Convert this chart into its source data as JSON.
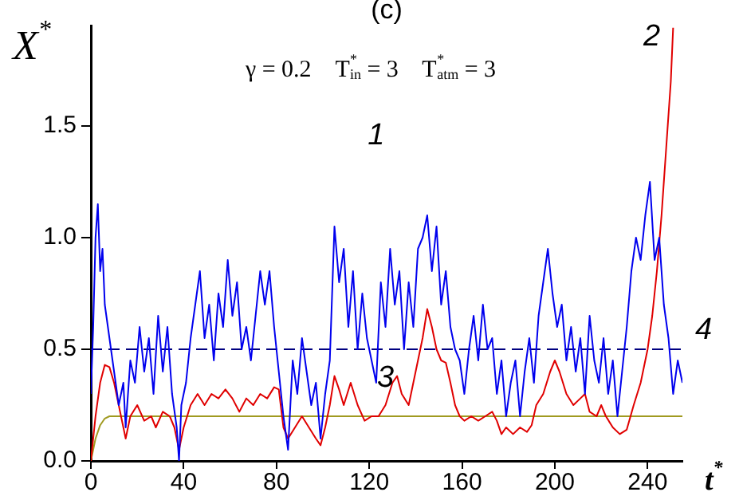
{
  "chart_data": {
    "type": "line",
    "title": "(c)",
    "xlabel": "t$^{*}$",
    "ylabel": "X$^{*}$",
    "xlim": [
      0,
      255
    ],
    "xticks": [
      0,
      40,
      80,
      120,
      160,
      200,
      240
    ],
    "ylim": [
      0,
      1.95
    ],
    "yticks": [
      {
        "value": 0,
        "label": "0.0"
      },
      {
        "value": 0.5,
        "label": "0.5"
      },
      {
        "value": 1,
        "label": "1.0"
      },
      {
        "value": 1.5,
        "label": "1.5"
      }
    ],
    "grid": false,
    "legend": false,
    "marker": "none",
    "line_style": "solid",
    "series": [
      {
        "color": "#0000ee",
        "x": [
          0,
          1,
          2,
          3,
          4,
          5,
          6,
          8,
          10,
          12,
          14,
          15,
          17,
          19,
          21,
          23,
          25,
          27,
          29,
          31,
          33,
          35,
          37,
          38,
          39,
          41,
          43,
          45,
          47,
          49,
          51,
          53,
          55,
          57,
          59,
          61,
          63,
          65,
          67,
          69,
          71,
          73,
          75,
          77,
          79,
          81,
          83,
          85,
          87,
          89,
          91,
          93,
          95,
          97,
          99,
          101,
          103,
          105,
          107,
          109,
          111,
          113,
          115,
          117,
          119,
          121,
          123,
          125,
          127,
          129,
          131,
          133,
          135,
          137,
          139,
          141,
          143,
          145,
          147,
          149,
          151,
          153,
          155,
          157,
          159,
          161,
          163,
          165,
          167,
          169,
          171,
          173,
          175,
          177,
          179,
          181,
          183,
          185,
          187,
          189,
          191,
          193,
          195,
          197,
          199,
          201,
          203,
          205,
          207,
          209,
          211,
          213,
          215,
          217,
          219,
          221,
          223,
          225,
          227,
          229,
          231,
          233,
          235,
          237,
          239,
          241,
          243,
          245,
          247,
          249,
          251,
          253,
          255
        ],
        "values": [
          0.3,
          0.6,
          1.0,
          1.15,
          0.85,
          0.95,
          0.7,
          0.55,
          0.4,
          0.25,
          0.35,
          0.15,
          0.45,
          0.35,
          0.6,
          0.4,
          0.55,
          0.3,
          0.65,
          0.4,
          0.6,
          0.3,
          0.15,
          0.0,
          0.25,
          0.35,
          0.55,
          0.7,
          0.85,
          0.55,
          0.7,
          0.45,
          0.75,
          0.6,
          0.9,
          0.65,
          0.8,
          0.5,
          0.6,
          0.45,
          0.65,
          0.85,
          0.7,
          0.85,
          0.6,
          0.4,
          0.2,
          0.05,
          0.45,
          0.3,
          0.55,
          0.4,
          0.25,
          0.35,
          0.1,
          0.3,
          0.45,
          1.05,
          0.8,
          0.95,
          0.6,
          0.85,
          0.5,
          0.75,
          0.55,
          0.45,
          0.35,
          0.8,
          0.6,
          0.95,
          0.7,
          0.85,
          0.5,
          0.8,
          0.6,
          0.95,
          1.0,
          1.1,
          0.85,
          1.05,
          0.7,
          0.85,
          0.6,
          0.5,
          0.45,
          0.3,
          0.5,
          0.65,
          0.45,
          0.7,
          0.5,
          0.55,
          0.3,
          0.45,
          0.2,
          0.35,
          0.45,
          0.2,
          0.4,
          0.55,
          0.35,
          0.65,
          0.8,
          0.95,
          0.75,
          0.6,
          0.7,
          0.45,
          0.6,
          0.4,
          0.55,
          0.3,
          0.65,
          0.45,
          0.35,
          0.55,
          0.3,
          0.45,
          0.2,
          0.4,
          0.6,
          0.85,
          1.0,
          0.9,
          1.1,
          1.25,
          0.9,
          1.0,
          0.7,
          0.55,
          0.3,
          0.45,
          0.35
        ]
      },
      {
        "color": "#e00000",
        "x": [
          0,
          2,
          4,
          6,
          8,
          10,
          12,
          14,
          15,
          17,
          20,
          23,
          26,
          28,
          31,
          34,
          36,
          38,
          40,
          43,
          46,
          49,
          52,
          55,
          58,
          61,
          64,
          67,
          70,
          73,
          76,
          79,
          81,
          83,
          85,
          88,
          91,
          94,
          97,
          99,
          101,
          103,
          105,
          107,
          109,
          112,
          115,
          118,
          121,
          124,
          127,
          130,
          132,
          134,
          137,
          140,
          143,
          145,
          147,
          149,
          151,
          153,
          155,
          157,
          159,
          161,
          164,
          167,
          170,
          173,
          175,
          177,
          179,
          182,
          185,
          188,
          190,
          192,
          195,
          198,
          200,
          202,
          205,
          208,
          211,
          213,
          215,
          218,
          220,
          222,
          225,
          228,
          231,
          234,
          237,
          240,
          242,
          244,
          246,
          248,
          250,
          251
        ],
        "values": [
          0.0,
          0.2,
          0.35,
          0.43,
          0.42,
          0.35,
          0.25,
          0.15,
          0.1,
          0.2,
          0.25,
          0.18,
          0.2,
          0.15,
          0.22,
          0.2,
          0.15,
          0.05,
          0.15,
          0.25,
          0.3,
          0.25,
          0.3,
          0.28,
          0.32,
          0.28,
          0.22,
          0.28,
          0.25,
          0.3,
          0.28,
          0.33,
          0.32,
          0.15,
          0.1,
          0.15,
          0.2,
          0.15,
          0.1,
          0.07,
          0.15,
          0.25,
          0.38,
          0.32,
          0.25,
          0.35,
          0.25,
          0.18,
          0.2,
          0.2,
          0.25,
          0.35,
          0.38,
          0.3,
          0.25,
          0.4,
          0.55,
          0.68,
          0.6,
          0.5,
          0.45,
          0.44,
          0.35,
          0.25,
          0.2,
          0.18,
          0.2,
          0.18,
          0.2,
          0.22,
          0.18,
          0.12,
          0.15,
          0.12,
          0.15,
          0.13,
          0.16,
          0.25,
          0.3,
          0.4,
          0.45,
          0.4,
          0.3,
          0.25,
          0.28,
          0.3,
          0.22,
          0.2,
          0.25,
          0.2,
          0.15,
          0.12,
          0.14,
          0.25,
          0.35,
          0.5,
          0.65,
          0.85,
          1.1,
          1.4,
          1.7,
          1.94
        ]
      },
      {
        "color": "#a09a20",
        "x": [
          0,
          2,
          4,
          6,
          8,
          12,
          255
        ],
        "values": [
          0,
          0.1,
          0.16,
          0.19,
          0.2,
          0.2,
          0.2
        ]
      },
      {
        "name": "4",
        "color": "#000080",
        "line_style": "dashed",
        "x": [
          0,
          255
        ],
        "values": [
          0.5,
          0.5
        ]
      }
    ],
    "annotations": [
      {
        "text": "1",
        "x": 145,
        "y": 1.1
      },
      {
        "text": "2",
        "x": 250,
        "y": 1.7
      },
      {
        "text": "3",
        "x": 149,
        "y": 0.2
      },
      "γ = 0.2    T$^{*}$$_{in}$ = 3    T$^{*}$$_{atm}$ = 3"
    ]
  }
}
